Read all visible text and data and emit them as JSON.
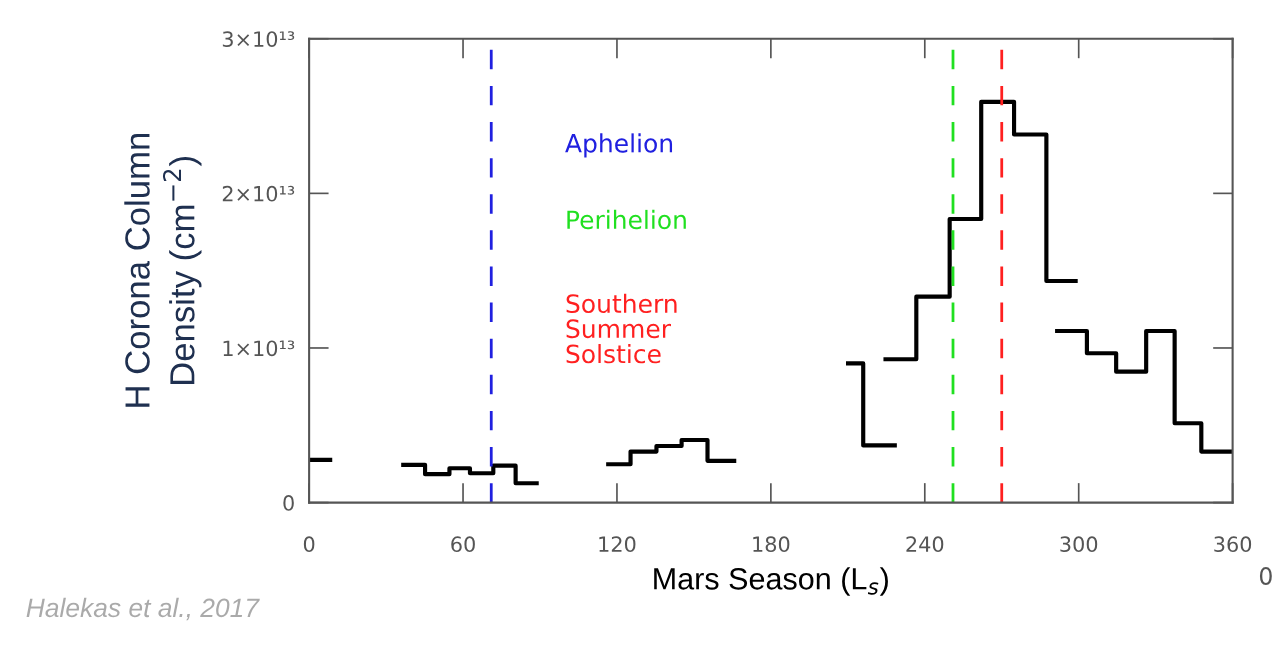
{
  "chart_data": {
    "type": "step",
    "xlabel": "Mars Season (L$_{s}$)",
    "ylabel": "H Corona Column\nDensity (cm$^{−2}$)",
    "xlim": [
      0,
      360
    ],
    "xticks": [
      0,
      60,
      120,
      180,
      240,
      300,
      360
    ],
    "ylim": [
      0,
      30000000000000.0
    ],
    "yticks": [
      {
        "value": 0,
        "label": "0"
      },
      {
        "value": 10000000000000.0,
        "label": "1×10¹³"
      },
      {
        "value": 20000000000000.0,
        "label": "2×10¹³"
      },
      {
        "value": 30000000000000.0,
        "label": "3×10¹³"
      }
    ],
    "grid": false,
    "legend": false,
    "series": [
      {
        "color": "#000000",
        "x": [
          0,
          8.2
        ],
        "values": [
          2760000000000.0,
          2760000000000.0
        ]
      },
      {
        "color": "#000000",
        "x": [
          36.7,
          45.2,
          54.7,
          62.7,
          71.8,
          80.5,
          88.7
        ],
        "values": [
          2440000000000.0,
          1840000000000.0,
          2220000000000.0,
          1900000000000.0,
          2390000000000.0,
          1250000000000.0,
          1250000000000.0
        ]
      },
      {
        "color": "#000000",
        "x": [
          116.6,
          125.3,
          135.4,
          145.2,
          155.3,
          165.7
        ],
        "values": [
          2480000000000.0,
          3300000000000.0,
          3660000000000.0,
          4050000000000.0,
          2700000000000.0,
          2700000000000.0
        ]
      },
      {
        "color": "#000000",
        "x": [
          210.1,
          216,
          228.3
        ],
        "values": [
          9000000000000.0,
          3700000000000.0,
          3700000000000.0
        ]
      },
      {
        "color": "#000000",
        "x": [
          224.7,
          236.7,
          249.7,
          262,
          274.8,
          287.4,
          298.8
        ],
        "values": [
          9270000000000.0,
          13320000000000.0,
          18340000000000.0,
          25920000000000.0,
          23810000000000.0,
          14330000000000.0,
          14330000000000.0
        ]
      },
      {
        "color": "#000000",
        "x": [
          291.6,
          303.2,
          314.6,
          326.3,
          337.4,
          347.8,
          359.7
        ],
        "values": [
          11100000000000.0,
          9660000000000.0,
          8470000000000.0,
          11100000000000.0,
          5130000000000.0,
          3300000000000.0,
          3300000000000.0
        ]
      }
    ],
    "ref_lines": [
      {
        "axis": "x",
        "value": 71,
        "label": "Aphelion",
        "color": "#2020e0",
        "line_style": "dashed"
      },
      {
        "axis": "x",
        "value": 251,
        "label": "Perihelion",
        "color": "#20e020",
        "line_style": "dashed"
      },
      {
        "axis": "x",
        "value": 270,
        "label": "Southern\nSummer\nSolstice",
        "color": "#ff2020",
        "line_style": "dashed"
      }
    ],
    "annotations": [
      "Halekas et al., 2017",
      "0"
    ]
  }
}
